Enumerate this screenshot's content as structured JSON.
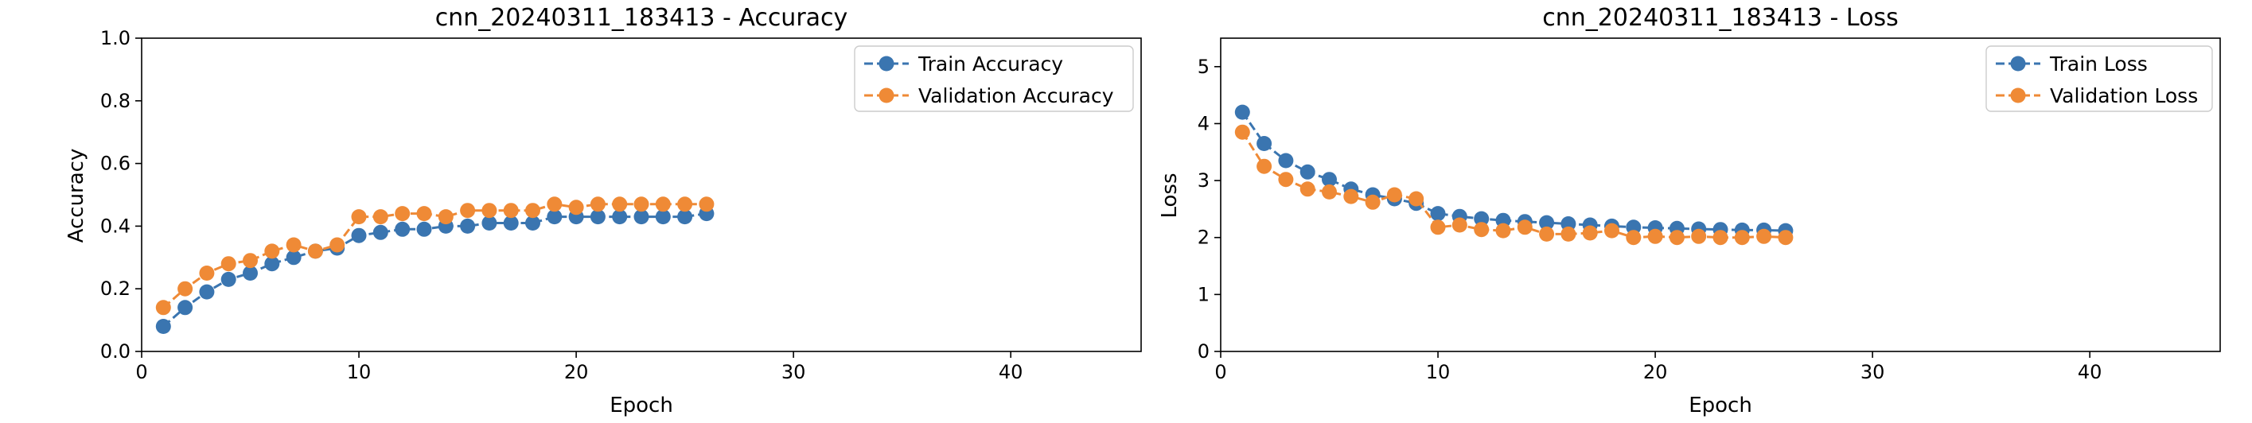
{
  "chart_data": [
    {
      "type": "line",
      "title": "cnn_20240311_183413 - Accuracy",
      "xlabel": "Epoch",
      "ylabel": "Accuracy",
      "xlim": [
        0,
        46
      ],
      "ylim": [
        0,
        1.0
      ],
      "xticks": [
        0,
        10,
        20,
        30,
        40
      ],
      "yticks": [
        0.0,
        0.2,
        0.4,
        0.6,
        0.8,
        1.0
      ],
      "xtick_labels": [
        "0",
        "10",
        "20",
        "30",
        "40"
      ],
      "ytick_labels": [
        "0.0",
        "0.2",
        "0.4",
        "0.6",
        "0.8",
        "1.0"
      ],
      "grid": false,
      "legend_position": "top-right",
      "x": [
        1,
        2,
        3,
        4,
        5,
        6,
        7,
        8,
        9,
        10,
        11,
        12,
        13,
        14,
        15,
        16,
        17,
        18,
        19,
        20,
        21,
        22,
        23,
        24,
        25,
        26
      ],
      "series": [
        {
          "name": "Train Accuracy",
          "color": "#3a75b0",
          "values": [
            0.08,
            0.14,
            0.19,
            0.23,
            0.25,
            0.28,
            0.3,
            0.32,
            0.33,
            0.37,
            0.38,
            0.39,
            0.39,
            0.4,
            0.4,
            0.41,
            0.41,
            0.41,
            0.43,
            0.43,
            0.43,
            0.43,
            0.43,
            0.43,
            0.43,
            0.44
          ]
        },
        {
          "name": "Validation Accuracy",
          "color": "#ef8a36",
          "values": [
            0.14,
            0.2,
            0.25,
            0.28,
            0.29,
            0.32,
            0.34,
            0.32,
            0.34,
            0.43,
            0.43,
            0.44,
            0.44,
            0.43,
            0.45,
            0.45,
            0.45,
            0.45,
            0.47,
            0.46,
            0.47,
            0.47,
            0.47,
            0.47,
            0.47,
            0.47
          ]
        }
      ]
    },
    {
      "type": "line",
      "title": "cnn_20240311_183413 - Loss",
      "xlabel": "Epoch",
      "ylabel": "Loss",
      "xlim": [
        0,
        46
      ],
      "ylim": [
        0,
        5.5
      ],
      "xticks": [
        0,
        10,
        20,
        30,
        40
      ],
      "yticks": [
        0,
        1,
        2,
        3,
        4,
        5
      ],
      "xtick_labels": [
        "0",
        "10",
        "20",
        "30",
        "40"
      ],
      "ytick_labels": [
        "0",
        "1",
        "2",
        "3",
        "4",
        "5"
      ],
      "grid": false,
      "legend_position": "top-right",
      "x": [
        1,
        2,
        3,
        4,
        5,
        6,
        7,
        8,
        9,
        10,
        11,
        12,
        13,
        14,
        15,
        16,
        17,
        18,
        19,
        20,
        21,
        22,
        23,
        24,
        25,
        26
      ],
      "series": [
        {
          "name": "Train Loss",
          "color": "#3a75b0",
          "values": [
            4.2,
            3.65,
            3.35,
            3.15,
            3.02,
            2.85,
            2.75,
            2.68,
            2.6,
            2.42,
            2.37,
            2.33,
            2.3,
            2.28,
            2.26,
            2.24,
            2.22,
            2.2,
            2.18,
            2.17,
            2.16,
            2.15,
            2.14,
            2.13,
            2.13,
            2.12
          ]
        },
        {
          "name": "Validation Loss",
          "color": "#ef8a36",
          "values": [
            3.85,
            3.25,
            3.02,
            2.85,
            2.8,
            2.72,
            2.62,
            2.75,
            2.68,
            2.18,
            2.22,
            2.14,
            2.12,
            2.18,
            2.06,
            2.06,
            2.08,
            2.12,
            2.0,
            2.02,
            2.0,
            2.02,
            2.0,
            2.0,
            2.02,
            2.0
          ]
        }
      ]
    }
  ]
}
